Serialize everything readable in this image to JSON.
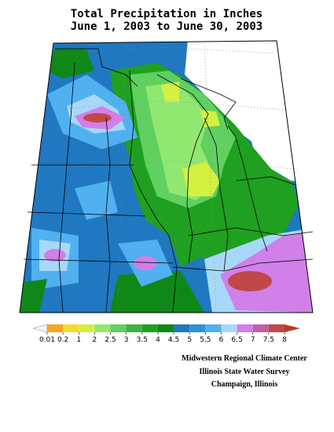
{
  "title": [
    "Total Precipitation in Inches",
    "June 1, 2003 to June 30, 2003"
  ],
  "legend": {
    "labels": [
      0.01,
      0.2,
      1,
      2,
      2.5,
      3,
      3.5,
      4,
      4.5,
      5,
      5.5,
      6,
      6.5,
      7,
      7.5,
      8
    ],
    "colors": [
      "#f5a623",
      "#f0dc30",
      "#d4f040",
      "#90e870",
      "#60d060",
      "#40b040",
      "#20a020",
      "#108818",
      "#1f78c0",
      "#3090d8",
      "#50b0f0",
      "#a8d8f8",
      "#d080e8",
      "#c060a8",
      "#c04848"
    ],
    "below_color": "#f4f4f4",
    "above_color": "#b04020"
  },
  "credits": [
    "Midwestern Regional Climate Center",
    "Illinois State Water Survey",
    "Champaign, Illinois"
  ]
}
